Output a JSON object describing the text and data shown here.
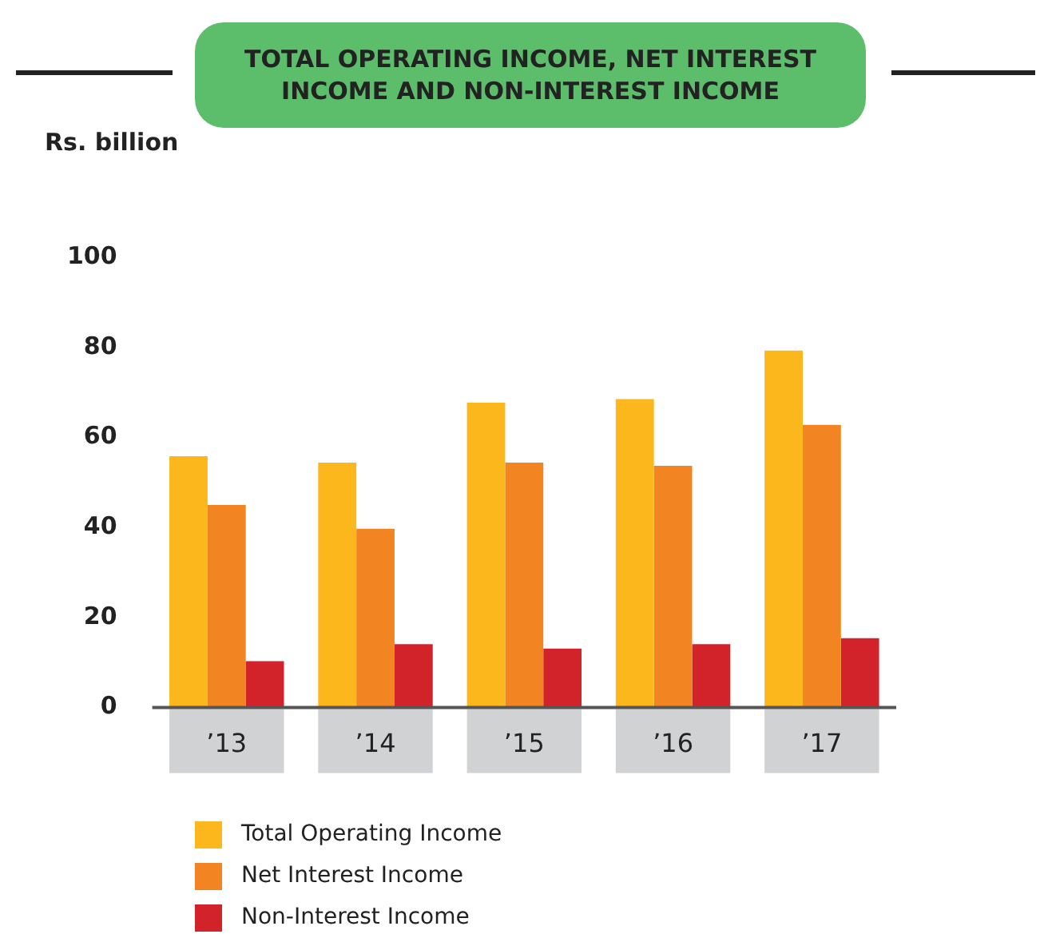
{
  "chart_data": {
    "type": "bar",
    "title": "TOTAL OPERATING INCOME, NET INTEREST INCOME AND NON-INTEREST INCOME",
    "ylabel": "Rs. billion",
    "categories": [
      "’13",
      "’14",
      "’15",
      "’16",
      "’17"
    ],
    "series": [
      {
        "name": "Total Operating Income",
        "color": "#fbb71b",
        "values": [
          55.8,
          54.4,
          67.7,
          68.5,
          79.3
        ]
      },
      {
        "name": "Net Interest Income",
        "color": "#f28421",
        "values": [
          45,
          39.7,
          54.4,
          53.7,
          62.8
        ]
      },
      {
        "name": "Non-Interest Income",
        "color": "#d2232a",
        "values": [
          10.3,
          14.1,
          13.1,
          14.1,
          15.4
        ]
      }
    ],
    "ylim": [
      0,
      100
    ],
    "yticks": [
      0,
      20,
      40,
      60,
      80,
      100
    ],
    "grid": false,
    "legend": "bottom left"
  }
}
